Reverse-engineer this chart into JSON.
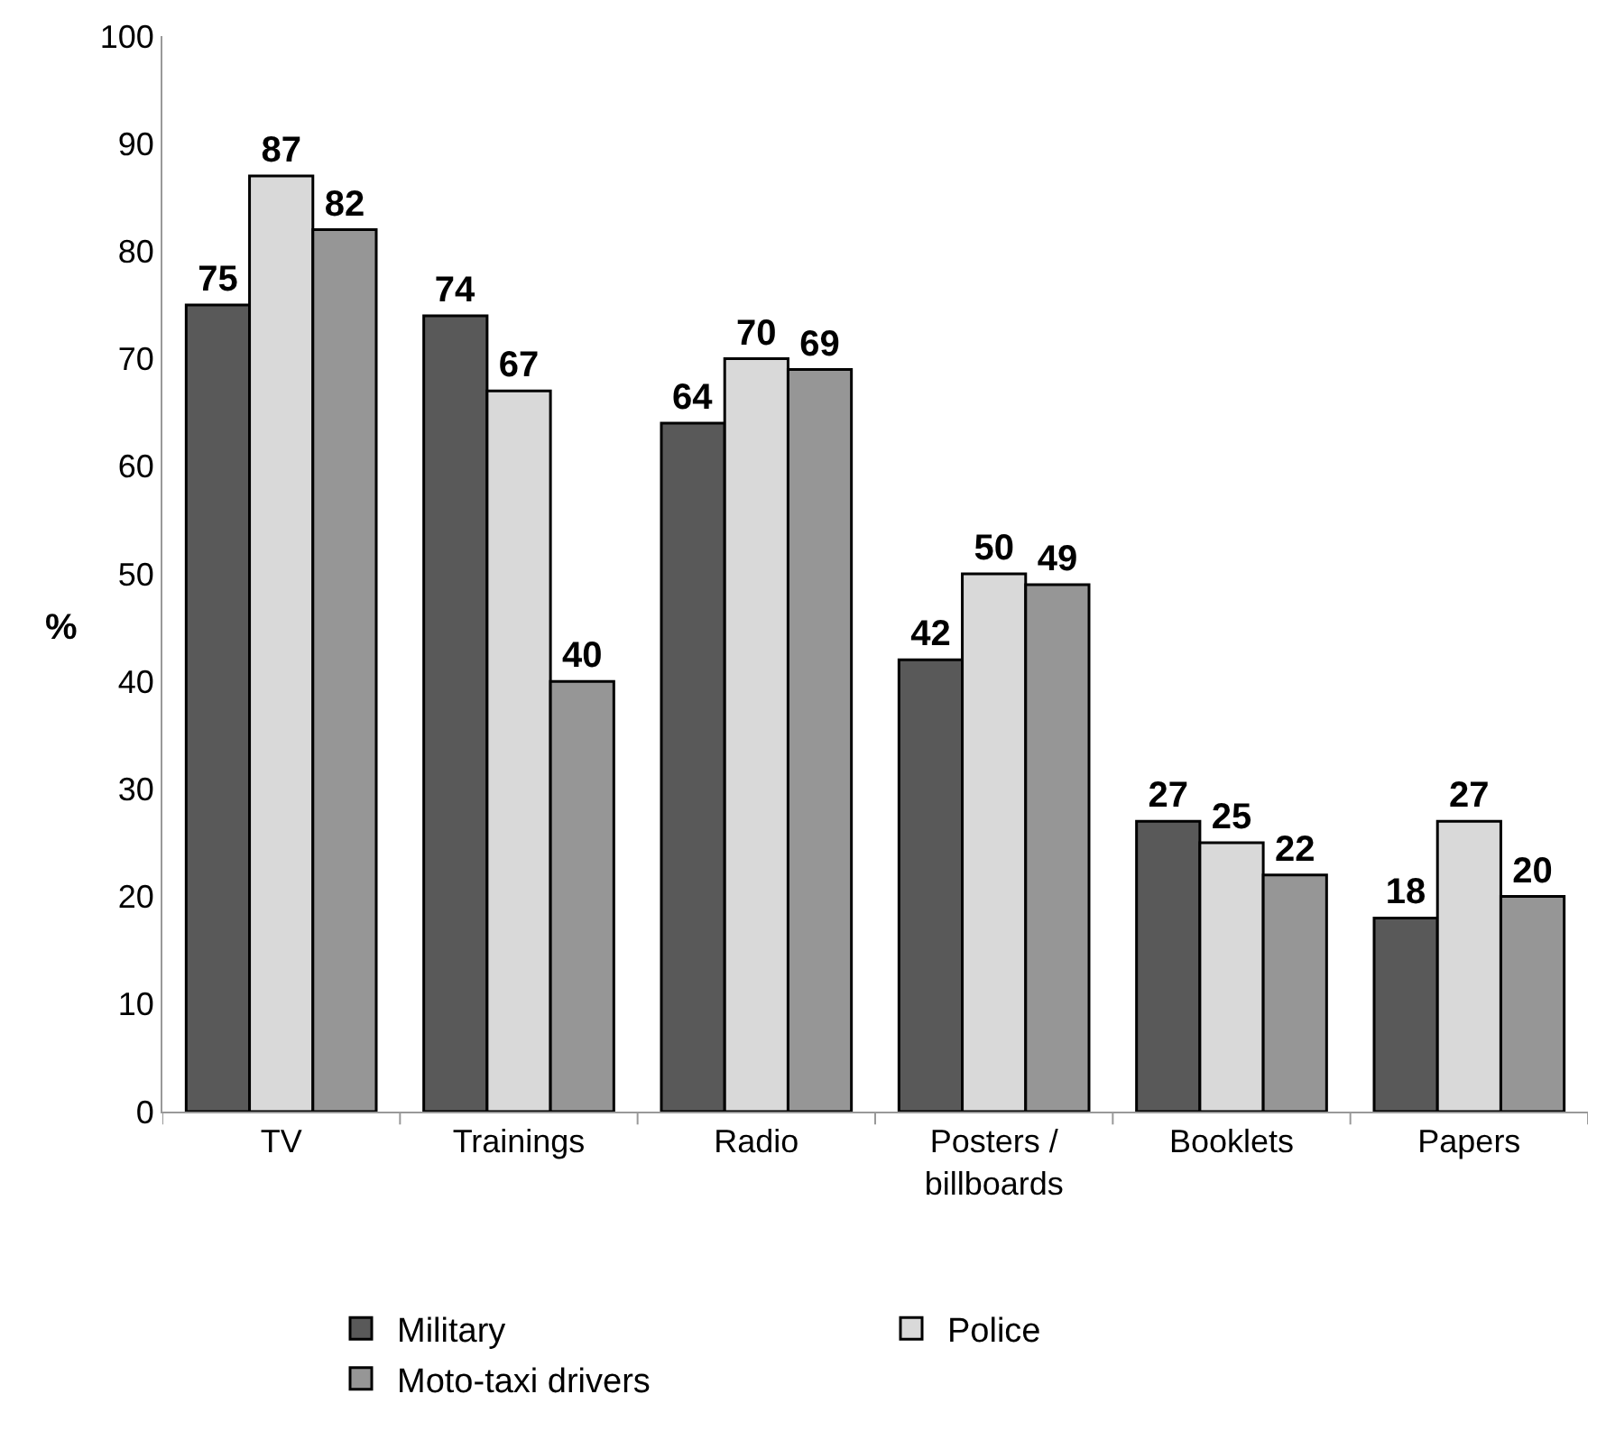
{
  "chart_data": {
    "type": "bar",
    "ylabel": "%",
    "categories": [
      "TV",
      "Trainings",
      "Radio",
      "Posters /\nbillboards",
      "Booklets",
      "Papers"
    ],
    "series": [
      {
        "name": "Military",
        "color": "#595959",
        "values": [
          75,
          74,
          64,
          42,
          27,
          18
        ]
      },
      {
        "name": "Police",
        "color": "#d9d9d9",
        "values": [
          87,
          67,
          70,
          50,
          25,
          27
        ]
      },
      {
        "name": "Moto-taxi drivers",
        "color": "#969696",
        "values": [
          82,
          40,
          69,
          49,
          22,
          20
        ]
      }
    ],
    "ylim": [
      0,
      100
    ],
    "yticks": [
      0,
      10,
      20,
      30,
      40,
      50,
      60,
      70,
      80,
      90,
      100
    ],
    "data_labels": true,
    "legend": "bottom"
  }
}
